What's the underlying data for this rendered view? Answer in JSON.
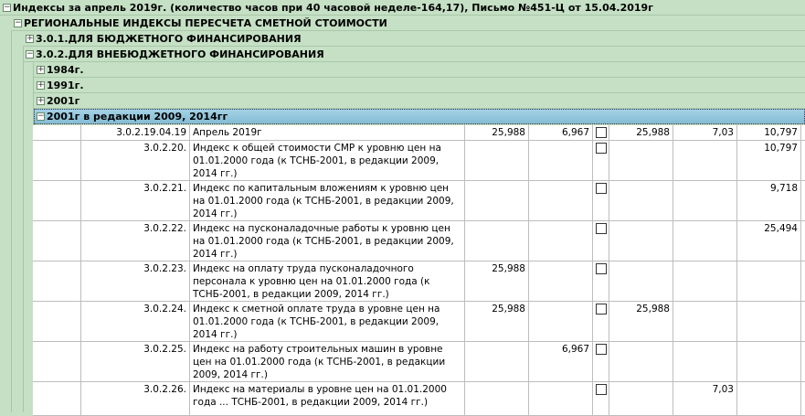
{
  "groups": [
    {
      "label": "Индексы  за апрель 2019г. (количество часов при 40 часовой неделе-164,17), Письмо №451-Ц от 15.04.2019г",
      "expanded": true
    },
    {
      "label": "РЕГИОНАЛЬНЫЕ ИНДЕКСЫ ПЕРЕСЧЕТА СМЕТНОЙ СТОИМОСТИ",
      "expanded": true
    },
    {
      "label": "3.0.1.ДЛЯ БЮДЖЕТНОГО ФИНАНСИРОВАНИЯ",
      "expanded": false
    },
    {
      "label": "3.0.2.ДЛЯ ВНЕБЮДЖЕТНОГО ФИНАНСИРОВАНИЯ",
      "expanded": true
    },
    {
      "label": "1984г.",
      "expanded": false
    },
    {
      "label": "1991г.",
      "expanded": false
    },
    {
      "label": "2001г",
      "expanded": false
    },
    {
      "label": "2001г в редакции 2009, 2014гг",
      "expanded": true,
      "selected": true
    }
  ],
  "rows": [
    {
      "code": "3.0.2.19.04.19",
      "desc": "Апрель 2019г",
      "v1": "25,988",
      "v2": "6,967",
      "checked": false,
      "v3": "25,988",
      "v4": "7,03",
      "v5": "10,797"
    },
    {
      "code": "3.0.2.20.",
      "desc": "Индекс к общей стоимости СМР к уровню цен на 01.01.2000 года (к ТСНБ-2001, в редакции 2009, 2014 гг.)",
      "v1": "",
      "v2": "",
      "checked": false,
      "v3": "",
      "v4": "",
      "v5": "10,797"
    },
    {
      "code": "3.0.2.21.",
      "desc": "Индекс по капитальным вложениям к уровню цен на 01.01.2000 года (к ТСНБ-2001, в редакции 2009, 2014 гг.)",
      "v1": "",
      "v2": "",
      "checked": false,
      "v3": "",
      "v4": "",
      "v5": "9,718"
    },
    {
      "code": "3.0.2.22.",
      "desc": "Индекс на пусконаладочные работы к уровню цен на 01.01.2000 года (к ТСНБ-2001, в редакции 2009, 2014 гг.)",
      "v1": "",
      "v2": "",
      "checked": false,
      "v3": "",
      "v4": "",
      "v5": "25,494"
    },
    {
      "code": "3.0.2.23.",
      "desc": "Индекс на оплату труда пусконаладочного персонала к уровню цен на 01.01.2000 года (к ТСНБ-2001, в редакции 2009, 2014 гг.)",
      "v1": "25,988",
      "v2": "",
      "checked": false,
      "v3": "",
      "v4": "",
      "v5": ""
    },
    {
      "code": "3.0.2.24.",
      "desc": "Индекс к сметной оплате труда в уровне цен на 01.01.2000 года (к ТСНБ-2001, в редакции 2009, 2014 гг.)",
      "v1": "25,988",
      "v2": "",
      "checked": false,
      "v3": "25,988",
      "v4": "",
      "v5": ""
    },
    {
      "code": "3.0.2.25.",
      "desc": "Индекс на работу строительных машин в уровне цен на 01.01.2000 года (к ТСНБ-2001, в редакции 2009, 2014 гг.)",
      "v1": "",
      "v2": "6,967",
      "checked": false,
      "v3": "",
      "v4": "",
      "v5": ""
    },
    {
      "code": "3.0.2.26.",
      "desc": "Индекс на материалы в уровне цен на 01.01.2000 года ... ТСНБ-2001, в редакции 2009, 2014 гг.)",
      "v1": "",
      "v2": "",
      "checked": false,
      "v3": "",
      "v4": "7,03",
      "v5": ""
    }
  ],
  "colors": {
    "group_bg": "#c5e0c5",
    "selected_bg": "#8fc3d8"
  }
}
